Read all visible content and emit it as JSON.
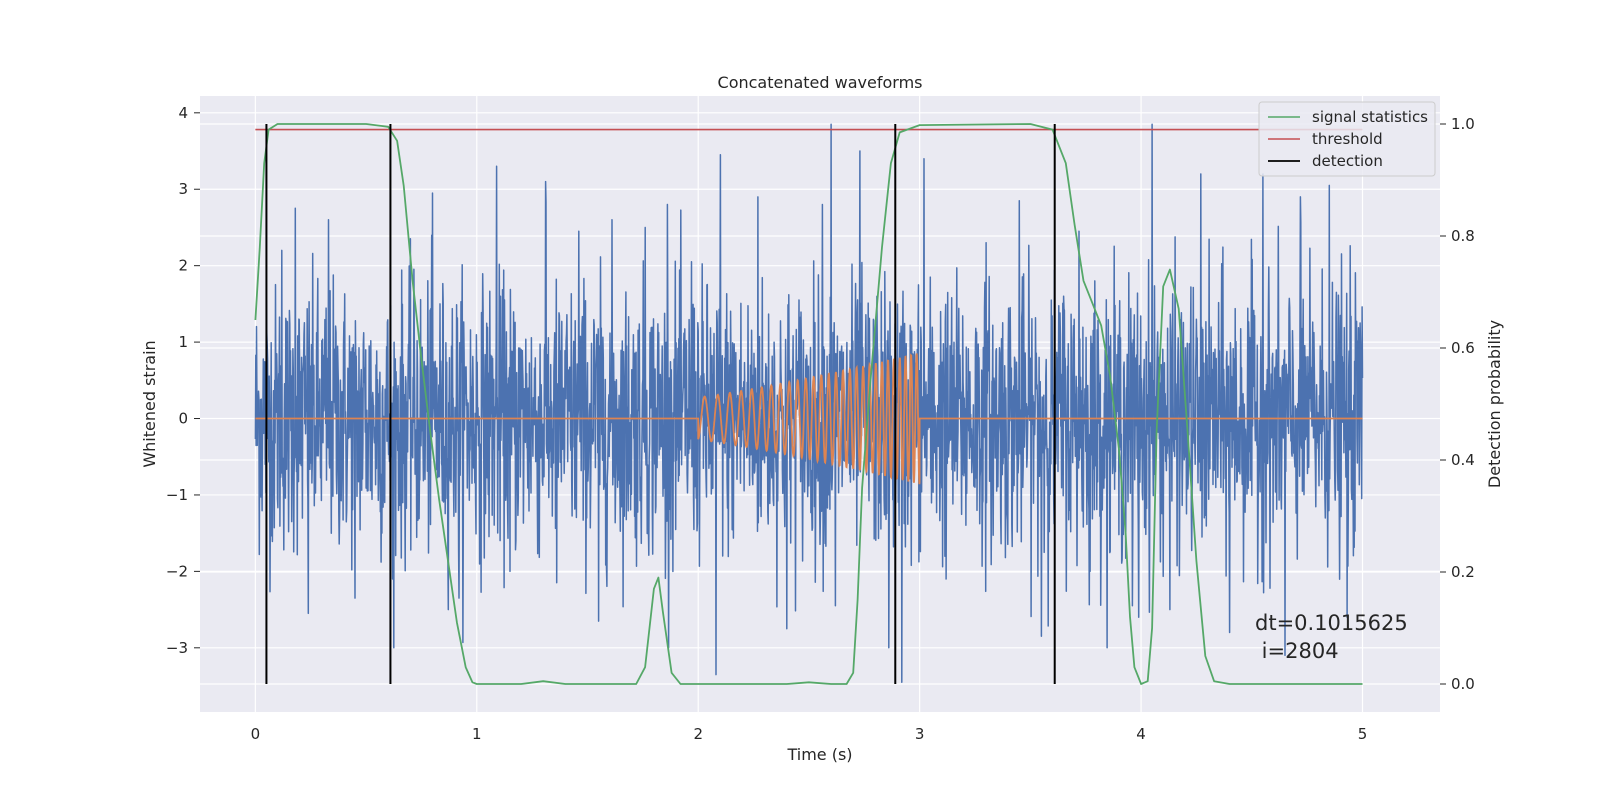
{
  "chart_data": {
    "type": "line",
    "title": "Concatenated waveforms",
    "xlabel": "Time (s)",
    "ylabel": "Whitened strain",
    "y2label": "Detection probability",
    "xlim": [
      -0.25,
      5.35
    ],
    "ylim": [
      -3.84,
      4.22
    ],
    "y2lim": [
      -0.05,
      1.05
    ],
    "x_ticks": [
      "0",
      "1",
      "2",
      "3",
      "4",
      "5"
    ],
    "y_ticks": [
      "4",
      "3",
      "2",
      "1",
      "0",
      "−1",
      "−2",
      "−3"
    ],
    "y2_ticks": [
      "0.0",
      "0.2",
      "0.4",
      "0.6",
      "0.8",
      "1.0"
    ],
    "grid": true,
    "legend_position": "top-right",
    "legend": [
      "signal statistics",
      "threshold",
      "detection"
    ],
    "annotation": [
      "dt=0.1015625",
      " i=2804"
    ],
    "series": [
      {
        "role": "strain-noise",
        "color": "#4c72b0",
        "x_range": [
          0,
          5
        ],
        "envelope": 1.2,
        "peaks": [
          [
            0.05,
            1.55
          ],
          [
            0.12,
            2.2
          ],
          [
            0.18,
            2.75
          ],
          [
            0.24,
            -2.55
          ],
          [
            0.33,
            2.6
          ],
          [
            0.45,
            -2.35
          ],
          [
            0.62,
            -2.1
          ],
          [
            0.8,
            2.95
          ],
          [
            0.92,
            -2.35
          ],
          [
            1.09,
            3.3
          ],
          [
            1.15,
            -2.0
          ],
          [
            1.31,
            3.1
          ],
          [
            1.36,
            -2.15
          ],
          [
            1.46,
            2.45
          ],
          [
            1.55,
            -2.65
          ],
          [
            1.61,
            2.6
          ],
          [
            1.76,
            2.5
          ],
          [
            1.86,
            2.8
          ],
          [
            1.97,
            2.05
          ],
          [
            2.08,
            -3.35
          ],
          [
            2.1,
            3.45
          ],
          [
            2.27,
            2.9
          ],
          [
            2.4,
            -2.75
          ],
          [
            2.56,
            2.8
          ],
          [
            2.6,
            3.85
          ],
          [
            2.62,
            -2.45
          ],
          [
            2.73,
            3.5
          ],
          [
            2.86,
            -3.0
          ],
          [
            2.92,
            -3.45
          ],
          [
            3.02,
            3.4
          ],
          [
            3.12,
            -2.1
          ],
          [
            3.3,
            2.3
          ],
          [
            3.45,
            2.85
          ],
          [
            3.55,
            -2.85
          ],
          [
            3.65,
            1.6
          ],
          [
            3.72,
            2.45
          ],
          [
            3.77,
            -2.0
          ],
          [
            3.96,
            -2.45
          ],
          [
            3.99,
            -2.6
          ],
          [
            4.05,
            3.85
          ],
          [
            4.13,
            -2.5
          ],
          [
            4.27,
            3.2
          ],
          [
            4.4,
            -2.8
          ],
          [
            4.55,
            3.2
          ],
          [
            4.65,
            -3.1
          ],
          [
            4.72,
            2.9
          ],
          [
            4.85,
            3.05
          ],
          [
            4.93,
            -2.6
          ],
          [
            4.99,
            1.25
          ]
        ]
      },
      {
        "role": "injected-waveform",
        "color": "#dd8452",
        "x_range": [
          0,
          5
        ],
        "chirp_start": 2.0,
        "chirp_end": 3.0,
        "amp_start": 0.28,
        "amp_end": 0.86,
        "cycles": 28
      },
      {
        "name": "signal statistics",
        "axis": "right",
        "color": "#55a868",
        "points": [
          [
            0.0,
            0.65
          ],
          [
            0.02,
            0.78
          ],
          [
            0.04,
            0.93
          ],
          [
            0.06,
            0.99
          ],
          [
            0.1,
            1.0
          ],
          [
            0.5,
            1.0
          ],
          [
            0.6,
            0.995
          ],
          [
            0.64,
            0.97
          ],
          [
            0.67,
            0.89
          ],
          [
            0.71,
            0.72
          ],
          [
            0.75,
            0.58
          ],
          [
            0.79,
            0.45
          ],
          [
            0.83,
            0.33
          ],
          [
            0.87,
            0.22
          ],
          [
            0.91,
            0.11
          ],
          [
            0.95,
            0.03
          ],
          [
            0.98,
            0.003
          ],
          [
            1.0,
            0.0
          ],
          [
            1.2,
            0.0
          ],
          [
            1.3,
            0.005
          ],
          [
            1.4,
            0.0
          ],
          [
            1.72,
            0.0
          ],
          [
            1.76,
            0.03
          ],
          [
            1.8,
            0.17
          ],
          [
            1.82,
            0.19
          ],
          [
            1.84,
            0.13
          ],
          [
            1.88,
            0.02
          ],
          [
            1.92,
            0.0
          ],
          [
            2.4,
            0.0
          ],
          [
            2.5,
            0.003
          ],
          [
            2.6,
            0.0
          ],
          [
            2.67,
            0.0
          ],
          [
            2.7,
            0.02
          ],
          [
            2.72,
            0.15
          ],
          [
            2.74,
            0.35
          ],
          [
            2.78,
            0.55
          ],
          [
            2.83,
            0.78
          ],
          [
            2.87,
            0.93
          ],
          [
            2.91,
            0.985
          ],
          [
            3.0,
            0.998
          ],
          [
            3.5,
            1.0
          ],
          [
            3.6,
            0.99
          ],
          [
            3.66,
            0.93
          ],
          [
            3.7,
            0.82
          ],
          [
            3.74,
            0.72
          ],
          [
            3.78,
            0.68
          ],
          [
            3.82,
            0.64
          ],
          [
            3.86,
            0.55
          ],
          [
            3.9,
            0.42
          ],
          [
            3.93,
            0.27
          ],
          [
            3.95,
            0.12
          ],
          [
            3.97,
            0.03
          ],
          [
            4.0,
            0.0
          ],
          [
            4.03,
            0.005
          ],
          [
            4.05,
            0.1
          ],
          [
            4.07,
            0.45
          ],
          [
            4.1,
            0.71
          ],
          [
            4.13,
            0.74
          ],
          [
            4.17,
            0.67
          ],
          [
            4.21,
            0.45
          ],
          [
            4.25,
            0.22
          ],
          [
            4.29,
            0.05
          ],
          [
            4.33,
            0.005
          ],
          [
            4.4,
            0.0
          ],
          [
            5.0,
            0.0
          ]
        ]
      },
      {
        "name": "threshold",
        "axis": "right",
        "color": "#c44e52",
        "points": [
          [
            0.0,
            0.99
          ],
          [
            5.0,
            0.99
          ]
        ]
      },
      {
        "name": "detection",
        "axis": "right",
        "color": "#000000",
        "vlines": [
          0.05,
          0.61,
          2.89,
          3.61
        ],
        "ymin": 0.0,
        "ymax": 1.0
      }
    ]
  }
}
